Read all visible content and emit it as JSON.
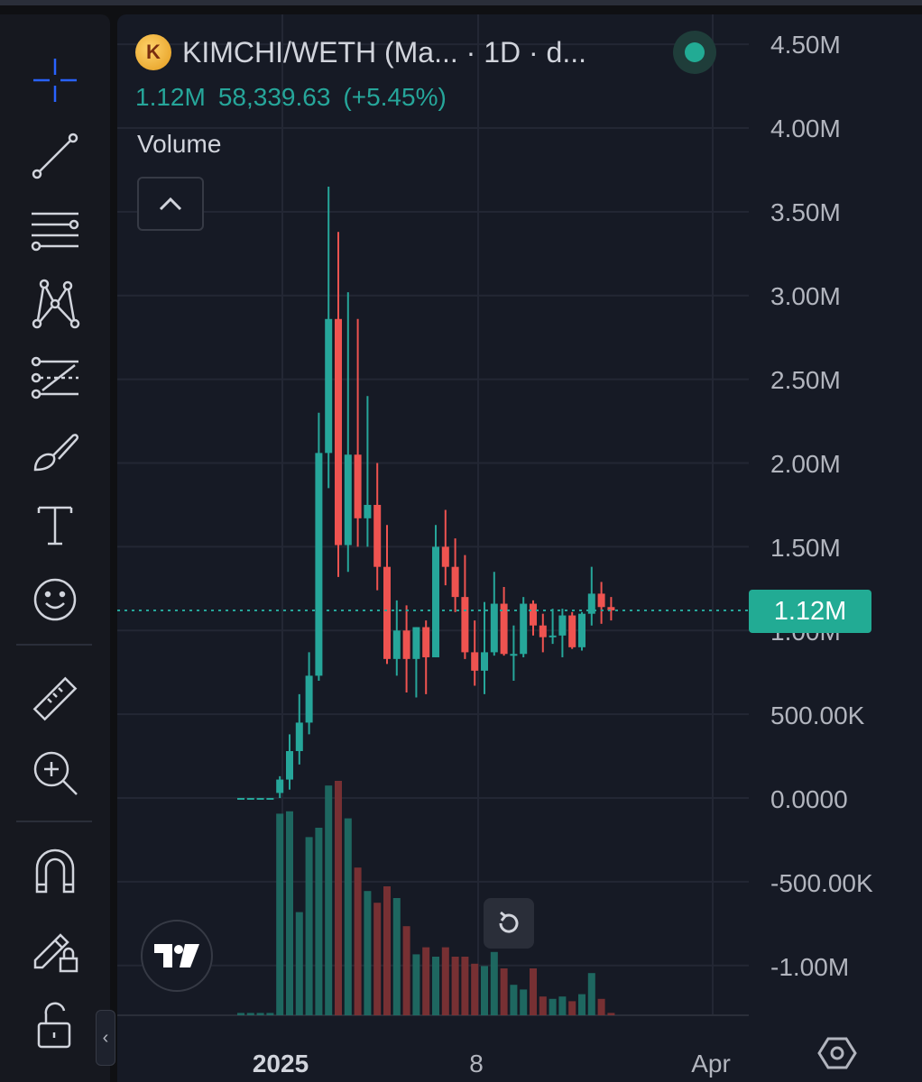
{
  "header": {
    "token_logo_letter": "K",
    "symbol_title": "KIMCHI/WETH (Ma... · 1D · d...",
    "last_value": "1.12M",
    "change_value": "58,339.63",
    "change_percent": "(+5.45%)",
    "volume_label": "Volume",
    "status_color": "#22ab94"
  },
  "price_scale": {
    "ticks": [
      "4.50M",
      "4.00M",
      "3.50M",
      "3.00M",
      "2.50M",
      "2.00M",
      "1.50M",
      "1.00M",
      "500.00K",
      "0.0000",
      "-500.00K",
      "-1.00M"
    ],
    "current_tag": "1.12M"
  },
  "time_scale": {
    "labels": [
      "2025",
      "8",
      "Apr"
    ]
  },
  "colors": {
    "up": "#26a69a",
    "down": "#ef5350",
    "background": "#161a25",
    "grid": "#232734",
    "accent": "#2962ff"
  },
  "toolbar": {
    "tools": [
      "crosshair-icon",
      "trend-line-icon",
      "fib-retracement-icon",
      "pattern-icon",
      "prediction-icon",
      "brush-icon",
      "text-icon",
      "emoji-icon",
      "ruler-icon",
      "zoom-in-icon",
      "magnet-icon",
      "lock-drawing-icon",
      "unlock-icon"
    ]
  },
  "chart_data": {
    "type": "candlestick",
    "title": "KIMCHI/WETH (Ma... · 1D · d...",
    "ylabel": "",
    "ylim": [
      -1250000,
      4750000
    ],
    "x_labels": [
      "2025",
      "8",
      "Apr"
    ],
    "last": 1120000,
    "change": 58339.63,
    "change_percent": 5.45,
    "series": [
      {
        "name": "price",
        "ohlc": [
          [
            0,
            0,
            0,
            0
          ],
          [
            0,
            0,
            0,
            0
          ],
          [
            0,
            0,
            0,
            0
          ],
          [
            0,
            0,
            0,
            0
          ],
          [
            30000,
            130000,
            0,
            110000
          ],
          [
            110000,
            380000,
            50000,
            280000
          ],
          [
            280000,
            620000,
            200000,
            450000
          ],
          [
            450000,
            870000,
            380000,
            730000
          ],
          [
            730000,
            2300000,
            700000,
            2060000
          ],
          [
            2060000,
            3650000,
            1850000,
            2860000
          ],
          [
            2860000,
            3380000,
            1320000,
            1510000
          ],
          [
            1510000,
            3020000,
            1350000,
            2050000
          ],
          [
            2050000,
            2860000,
            1500000,
            1670000
          ],
          [
            1670000,
            2400000,
            1500000,
            1750000
          ],
          [
            1750000,
            2000000,
            1240000,
            1380000
          ],
          [
            1380000,
            1630000,
            800000,
            830000
          ],
          [
            830000,
            1180000,
            730000,
            1000000
          ],
          [
            1000000,
            1150000,
            630000,
            830000
          ],
          [
            830000,
            1020000,
            600000,
            1020000
          ],
          [
            1020000,
            1060000,
            620000,
            840000
          ],
          [
            840000,
            1630000,
            840000,
            1500000
          ],
          [
            1500000,
            1720000,
            1270000,
            1380000
          ],
          [
            1380000,
            1550000,
            1110000,
            1200000
          ],
          [
            1200000,
            1450000,
            830000,
            870000
          ],
          [
            870000,
            1060000,
            670000,
            760000
          ],
          [
            760000,
            1170000,
            620000,
            870000
          ],
          [
            870000,
            1350000,
            850000,
            1160000
          ],
          [
            1160000,
            1260000,
            850000,
            860000
          ],
          [
            860000,
            1030000,
            700000,
            860000
          ],
          [
            860000,
            1200000,
            840000,
            1160000
          ],
          [
            1160000,
            1180000,
            970000,
            1030000
          ],
          [
            1030000,
            1100000,
            870000,
            960000
          ],
          [
            960000,
            1130000,
            920000,
            970000
          ],
          [
            970000,
            1130000,
            840000,
            1090000
          ],
          [
            1090000,
            1110000,
            890000,
            900000
          ],
          [
            900000,
            1110000,
            880000,
            1100000
          ],
          [
            1100000,
            1380000,
            1030000,
            1220000
          ],
          [
            1220000,
            1290000,
            1040000,
            1140000
          ],
          [
            1140000,
            1200000,
            1060000,
            1120000
          ]
        ]
      },
      {
        "name": "Volume",
        "values": [
          0.01,
          0.01,
          0.01,
          0.01,
          0.86,
          0.87,
          0.44,
          0.76,
          0.8,
          0.98,
          1.0,
          0.84,
          0.63,
          0.53,
          0.48,
          0.55,
          0.5,
          0.38,
          0.26,
          0.29,
          0.25,
          0.29,
          0.25,
          0.25,
          0.22,
          0.21,
          0.27,
          0.2,
          0.13,
          0.11,
          0.2,
          0.08,
          0.07,
          0.08,
          0.06,
          0.09,
          0.18,
          0.07,
          0.01
        ]
      }
    ]
  }
}
